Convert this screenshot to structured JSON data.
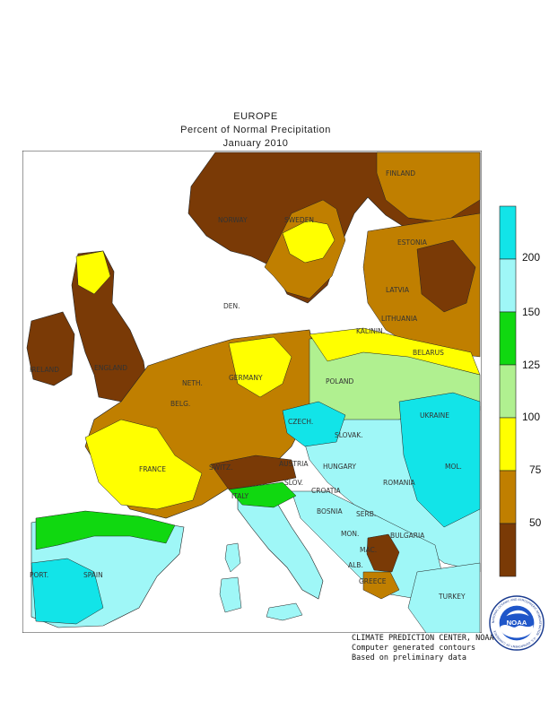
{
  "header": {
    "region": "EUROPE",
    "title": "Percent of Normal Precipitation",
    "period": "January 2010"
  },
  "legend": {
    "labels": [
      "200",
      "150",
      "125",
      "100",
      "75",
      "50"
    ],
    "colors": [
      "#12e4e8",
      "#9ff7f7",
      "#10d810",
      "#b0f090",
      "#ffff00",
      "#c07f00",
      "#7a3a06"
    ]
  },
  "map": {
    "countries": [
      "FINLAND",
      "NORWAY",
      "SWEDEN",
      "ESTONIA",
      "LATVIA",
      "LITHUANIA",
      "KALININ.",
      "DEN.",
      "BELARUS",
      "IRELAND",
      "ENGLAND",
      "NETH.",
      "GERMANY",
      "POLAND",
      "BELG.",
      "CZECH.",
      "UKRAINE",
      "SLOVAK.",
      "MOL.",
      "FRANCE",
      "SWITZ.",
      "AUSTRIA",
      "HUNGARY",
      "SLOV.",
      "ROMANIA",
      "CROATIA",
      "ITALY",
      "BOSNIA",
      "SERB.",
      "BULGARIA",
      "MON.",
      "MAC.",
      "PORT.",
      "SPAIN",
      "ALB.",
      "GREECE",
      "TURKEY"
    ]
  },
  "credits": {
    "line1": "CLIMATE PREDICTION CENTER, NOAA",
    "line2": "Computer generated contours",
    "line3": "Based on preliminary data"
  },
  "logo": {
    "text": "NOAA",
    "ring_text": "NATIONAL OCEANIC AND ATMOSPHERIC ADMINISTRATION · U.S. DEPARTMENT OF COMMERCE"
  }
}
